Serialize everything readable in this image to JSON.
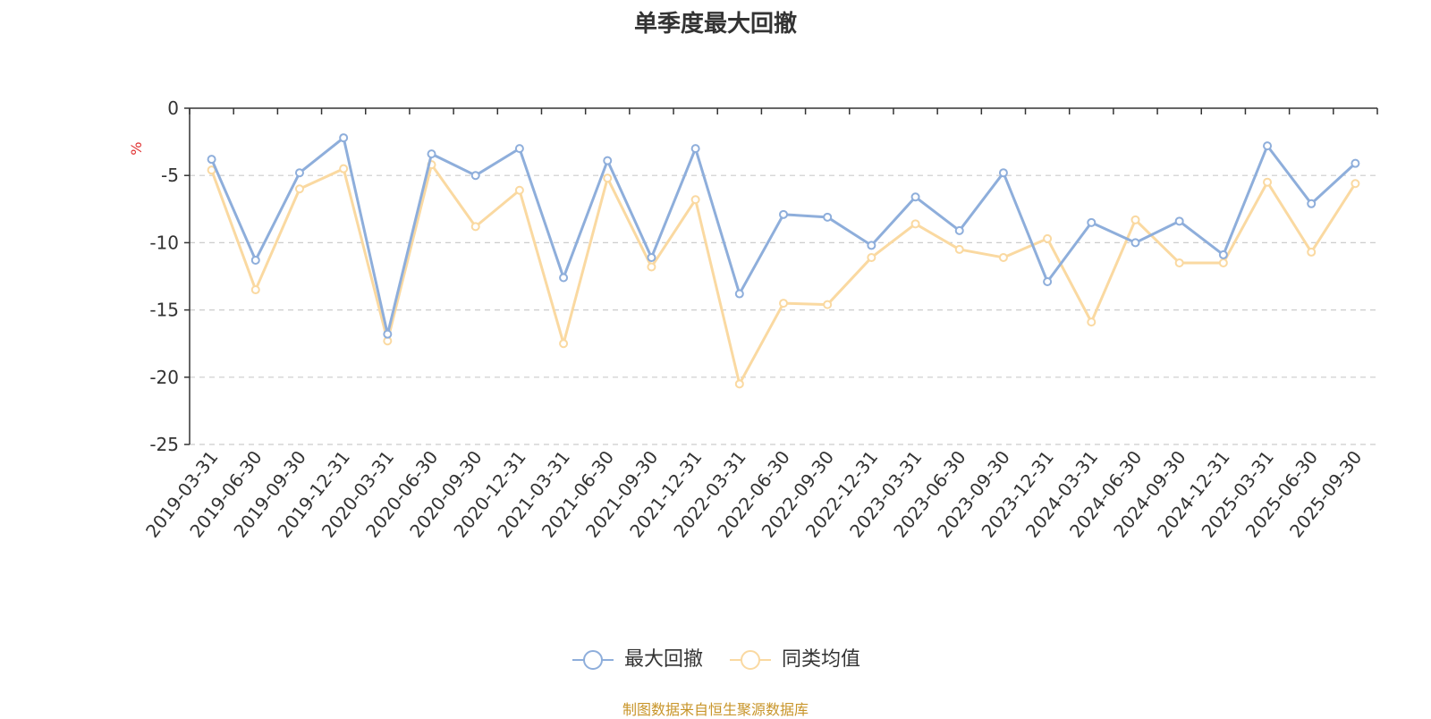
{
  "chart_data": {
    "type": "line",
    "title": "单季度最大回撤",
    "ylabel": "%",
    "ylim": [
      -25,
      0
    ],
    "yticks": [
      0,
      -5,
      -10,
      -15,
      -20,
      -25
    ],
    "grid": true,
    "legend_position": "bottom",
    "categories": [
      "2019-03-31",
      "2019-06-30",
      "2019-09-30",
      "2019-12-31",
      "2020-03-31",
      "2020-06-30",
      "2020-09-30",
      "2020-12-31",
      "2021-03-31",
      "2021-06-30",
      "2021-09-30",
      "2021-12-31",
      "2022-03-31",
      "2022-06-30",
      "2022-09-30",
      "2022-12-31",
      "2023-03-31",
      "2023-06-30",
      "2023-09-30",
      "2023-12-31",
      "2024-03-31",
      "2024-06-30",
      "2024-09-30",
      "2024-12-31",
      "2025-03-31",
      "2025-06-30",
      "2025-09-30"
    ],
    "series": [
      {
        "name": "最大回撤",
        "color": "#8eaedb",
        "values": [
          -3.8,
          -11.3,
          -4.8,
          -2.2,
          -16.8,
          -3.4,
          -5.0,
          -3.0,
          -12.6,
          -3.9,
          -11.1,
          -3.0,
          -13.8,
          -7.9,
          -8.1,
          -10.2,
          -6.6,
          -9.1,
          -4.8,
          -12.9,
          -8.5,
          -10.0,
          -8.4,
          -10.9,
          -2.8,
          -7.1,
          -4.1
        ]
      },
      {
        "name": "同类均值",
        "color": "#fad9a1",
        "values": [
          -4.6,
          -13.5,
          -6.0,
          -4.5,
          -17.3,
          -4.2,
          -8.8,
          -6.1,
          -17.5,
          -5.2,
          -11.8,
          -6.8,
          -20.5,
          -14.5,
          -14.6,
          -11.1,
          -8.6,
          -10.5,
          -11.1,
          -9.7,
          -15.9,
          -8.3,
          -11.5,
          -11.5,
          -5.5,
          -10.7,
          -5.6
        ]
      }
    ],
    "source": "制图数据来自恒生聚源数据库",
    "colors": {
      "grid": "#cccccc",
      "axis": "#333333",
      "unit": "#e03030",
      "source": "#c8952a"
    }
  }
}
